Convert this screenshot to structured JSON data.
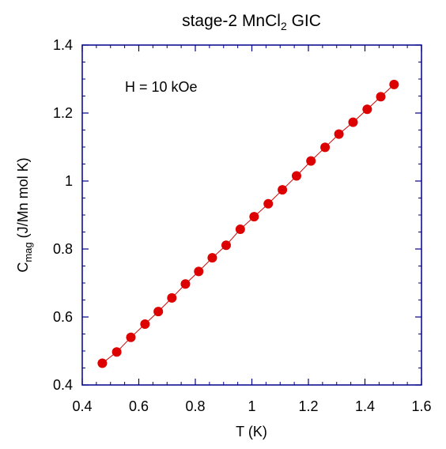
{
  "chart_data": {
    "type": "scatter",
    "title": {
      "main": "stage-2 MnCl",
      "sub": "2",
      "suffix": " GIC"
    },
    "xlabel": "T (K)",
    "ylabel": {
      "main": "C",
      "sub": "mag",
      "suffix": " (J/Mn mol K)"
    },
    "annotation": "H = 10 kOe",
    "xlim": [
      0.4,
      1.6
    ],
    "ylim": [
      0.4,
      1.4
    ],
    "x_ticks": [
      0.4,
      0.6,
      0.8,
      1,
      1.2,
      1.4,
      1.6
    ],
    "x_tick_labels": [
      "0.4",
      "0.6",
      "0.8",
      "1",
      "1.2",
      "1.4",
      "1.6"
    ],
    "y_ticks": [
      0.4,
      0.6,
      0.8,
      1,
      1.2,
      1.4
    ],
    "y_tick_labels": [
      "0.4",
      "0.6",
      "0.8",
      "1",
      "1.2",
      "1.4"
    ],
    "x_minor_step": 0.05,
    "y_minor_step": 0.05,
    "grid": false,
    "colors": {
      "axes": "#00008b",
      "marker": "#dd0000",
      "line": "#cc0000"
    },
    "series": [
      {
        "marker": "circle",
        "line": true,
        "x": [
          0.471,
          0.522,
          0.572,
          0.622,
          0.669,
          0.717,
          0.765,
          0.812,
          0.86,
          0.909,
          0.959,
          1.008,
          1.058,
          1.108,
          1.158,
          1.209,
          1.259,
          1.308,
          1.358,
          1.408,
          1.456,
          1.503
        ],
        "y": [
          0.464,
          0.497,
          0.54,
          0.579,
          0.616,
          0.656,
          0.697,
          0.734,
          0.774,
          0.811,
          0.858,
          0.895,
          0.933,
          0.974,
          1.015,
          1.059,
          1.099,
          1.138,
          1.173,
          1.211,
          1.248,
          1.284
        ]
      }
    ]
  }
}
